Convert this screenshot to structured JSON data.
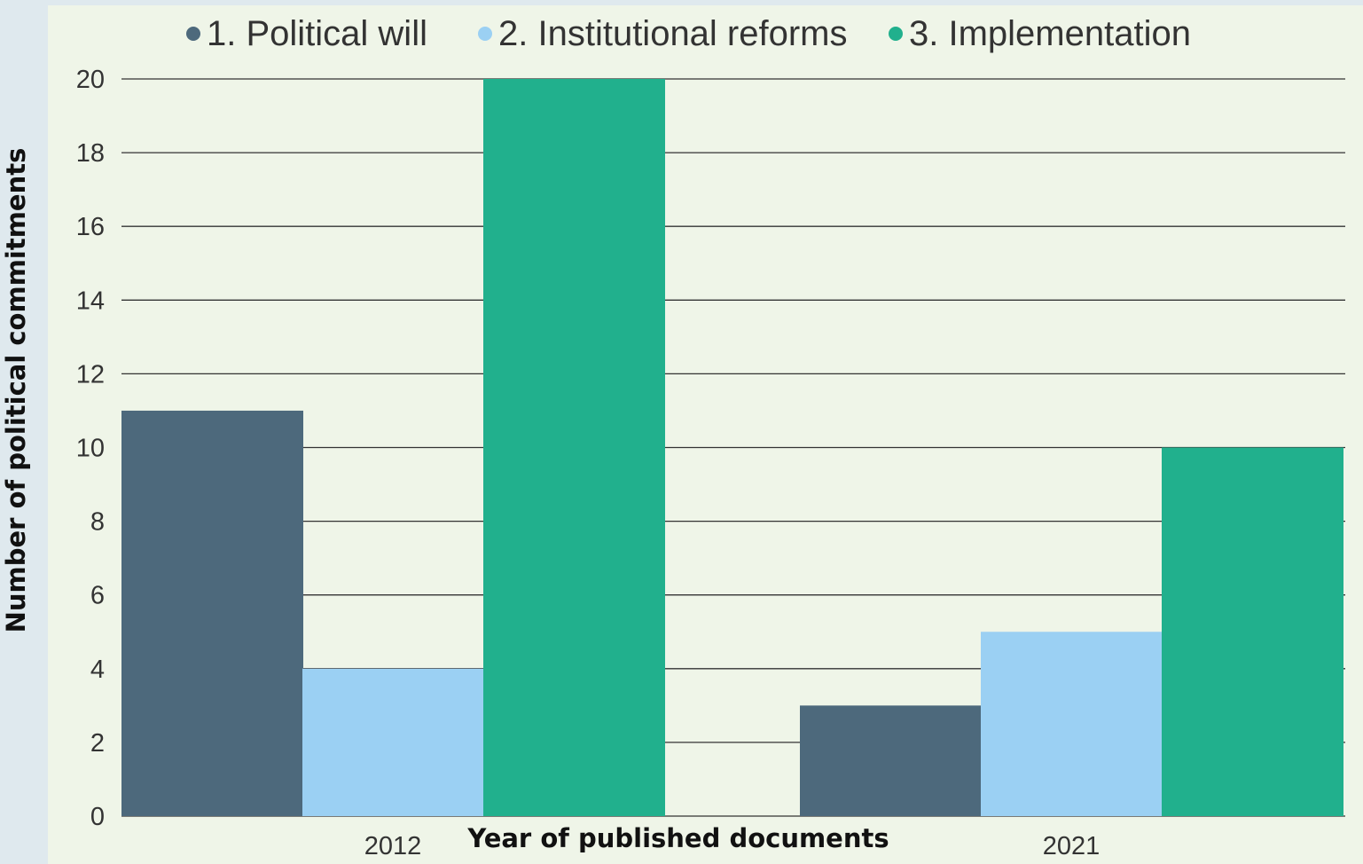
{
  "chart_data": {
    "type": "bar",
    "title": "",
    "xlabel": "Year of published documents",
    "ylabel": "Number of political commitments",
    "categories": [
      "2012",
      "2021"
    ],
    "series": [
      {
        "name": "1. Political will",
        "values": [
          11,
          3
        ],
        "color": "#4d697c"
      },
      {
        "name": "2. Institutional reforms",
        "values": [
          4,
          5
        ],
        "color": "#9bd0f3"
      },
      {
        "name": "3. Implementation",
        "values": [
          20,
          10
        ],
        "color": "#21b08d"
      }
    ],
    "ylim": [
      0,
      20
    ],
    "yticks": [
      "0",
      "2",
      "4",
      "6",
      "8",
      "10",
      "12",
      "14",
      "16",
      "18",
      "20"
    ],
    "grid": true,
    "legend_position": "top",
    "colors": {
      "outer_background": "#dfe9ee",
      "plot_background": "#eff5e8",
      "gridline": "#333333"
    }
  }
}
